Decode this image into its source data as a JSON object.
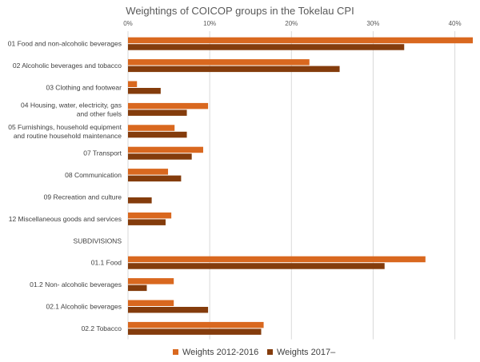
{
  "chart_data": {
    "type": "bar",
    "orientation": "horizontal",
    "title": "Weightings of COICOP groups in the Tokelau CPI",
    "xlabel": "",
    "ylabel": "",
    "xlim": [
      0,
      42
    ],
    "x_ticks": [
      "0%",
      "10%",
      "20%",
      "30%",
      "40%"
    ],
    "grid": "vertical",
    "legend_position": "bottom",
    "categories": [
      [
        "01 Food and non-alcoholic beverages"
      ],
      [
        "02 Alcoholic beverages and tobacco"
      ],
      [
        "03 Clothing and footwear"
      ],
      [
        "04 Housing, water, electricity, gas",
        "and other fuels"
      ],
      [
        "05 Furnishings, household equipment",
        "and routine household maintenance"
      ],
      [
        "07 Transport"
      ],
      [
        "08 Communication"
      ],
      [
        "09 Recreation and culture"
      ],
      [
        "12 Miscellaneous goods and services"
      ],
      [
        "SUBDIVISIONS"
      ],
      [
        "01.1 Food"
      ],
      [
        "01.2 Non- alcoholic beverages"
      ],
      [
        "02.1 Alcoholic beverages"
      ],
      [
        "02.2 Tobacco"
      ]
    ],
    "series": [
      {
        "name": "Weights 2012-2016",
        "color": "#d9681f",
        "values": [
          42.2,
          22.2,
          1.1,
          9.8,
          5.7,
          9.2,
          4.9,
          null,
          5.3,
          null,
          36.4,
          5.6,
          5.6,
          16.6
        ]
      },
      {
        "name": "Weights 2017–",
        "color": "#843c0c",
        "values": [
          33.8,
          25.9,
          4.0,
          7.2,
          7.2,
          7.8,
          6.5,
          2.9,
          4.6,
          null,
          31.4,
          2.3,
          9.8,
          16.3
        ]
      }
    ]
  }
}
